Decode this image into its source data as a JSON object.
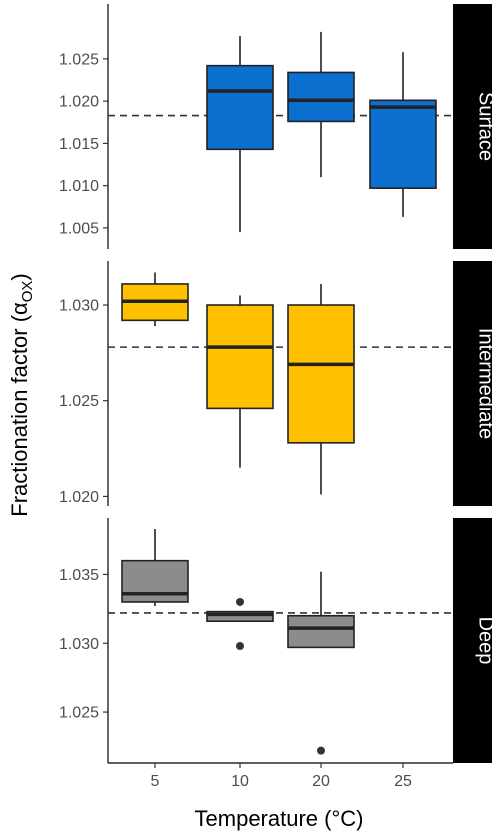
{
  "chart_data": {
    "type": "box",
    "xlabel": "Temperature (°C)",
    "ylabel_main": "Fractionation factor (α",
    "ylabel_sub": "OX",
    "ylabel_close": ")",
    "categories": [
      "5",
      "10",
      "20",
      "25"
    ],
    "colors": {
      "Surface": "#0a6fce",
      "Intermediate": "#ffc000",
      "Deep": "#8c8c8c"
    },
    "panels": [
      {
        "strip": "Surface",
        "ylim": [
          1.0025,
          1.0315
        ],
        "yticks": [
          1.005,
          1.01,
          1.015,
          1.02,
          1.025
        ],
        "ytick_labels": [
          "1.005",
          "1.010",
          "1.015",
          "1.020",
          "1.025"
        ],
        "reference_line": 1.0183,
        "boxes": [
          {
            "category": "10",
            "min": 1.0045,
            "q1": 1.0143,
            "median": 1.0212,
            "q3": 1.0242,
            "max": 1.0277,
            "outliers": []
          },
          {
            "category": "20",
            "min": 1.011,
            "q1": 1.0176,
            "median": 1.0201,
            "q3": 1.0234,
            "max": 1.0282,
            "outliers": []
          },
          {
            "category": "25",
            "min": 1.0063,
            "q1": 1.0097,
            "median": 1.0193,
            "q3": 1.0201,
            "max": 1.0258,
            "outliers": []
          }
        ]
      },
      {
        "strip": "Intermediate",
        "ylim": [
          1.0195,
          1.0323
        ],
        "yticks": [
          1.02,
          1.025,
          1.03
        ],
        "ytick_labels": [
          "1.020",
          "1.025",
          "1.030"
        ],
        "reference_line": 1.0278,
        "boxes": [
          {
            "category": "5",
            "min": 1.0289,
            "q1": 1.0292,
            "median": 1.0302,
            "q3": 1.0311,
            "max": 1.0317,
            "outliers": []
          },
          {
            "category": "10",
            "min": 1.0215,
            "q1": 1.0246,
            "median": 1.0278,
            "q3": 1.03,
            "max": 1.0305,
            "outliers": []
          },
          {
            "category": "20",
            "min": 1.0201,
            "q1": 1.0228,
            "median": 1.0269,
            "q3": 1.03,
            "max": 1.0311,
            "outliers": []
          }
        ]
      },
      {
        "strip": "Deep",
        "ylim": [
          1.0213,
          1.0391
        ],
        "yticks": [
          1.025,
          1.03,
          1.035
        ],
        "ytick_labels": [
          "1.025",
          "1.030",
          "1.035"
        ],
        "reference_line": 1.0322,
        "boxes": [
          {
            "category": "5",
            "min": 1.0327,
            "q1": 1.033,
            "median": 1.0336,
            "q3": 1.036,
            "max": 1.0383,
            "outliers": []
          },
          {
            "category": "10",
            "min": 1.0316,
            "q1": 1.0316,
            "median": 1.0321,
            "q3": 1.0323,
            "max": 1.0323,
            "outliers": [
              1.033,
              1.0298
            ]
          },
          {
            "category": "20",
            "min": 1.0297,
            "q1": 1.0297,
            "median": 1.0311,
            "q3": 1.032,
            "max": 1.0352,
            "outliers": [
              1.0222
            ]
          }
        ]
      }
    ]
  }
}
